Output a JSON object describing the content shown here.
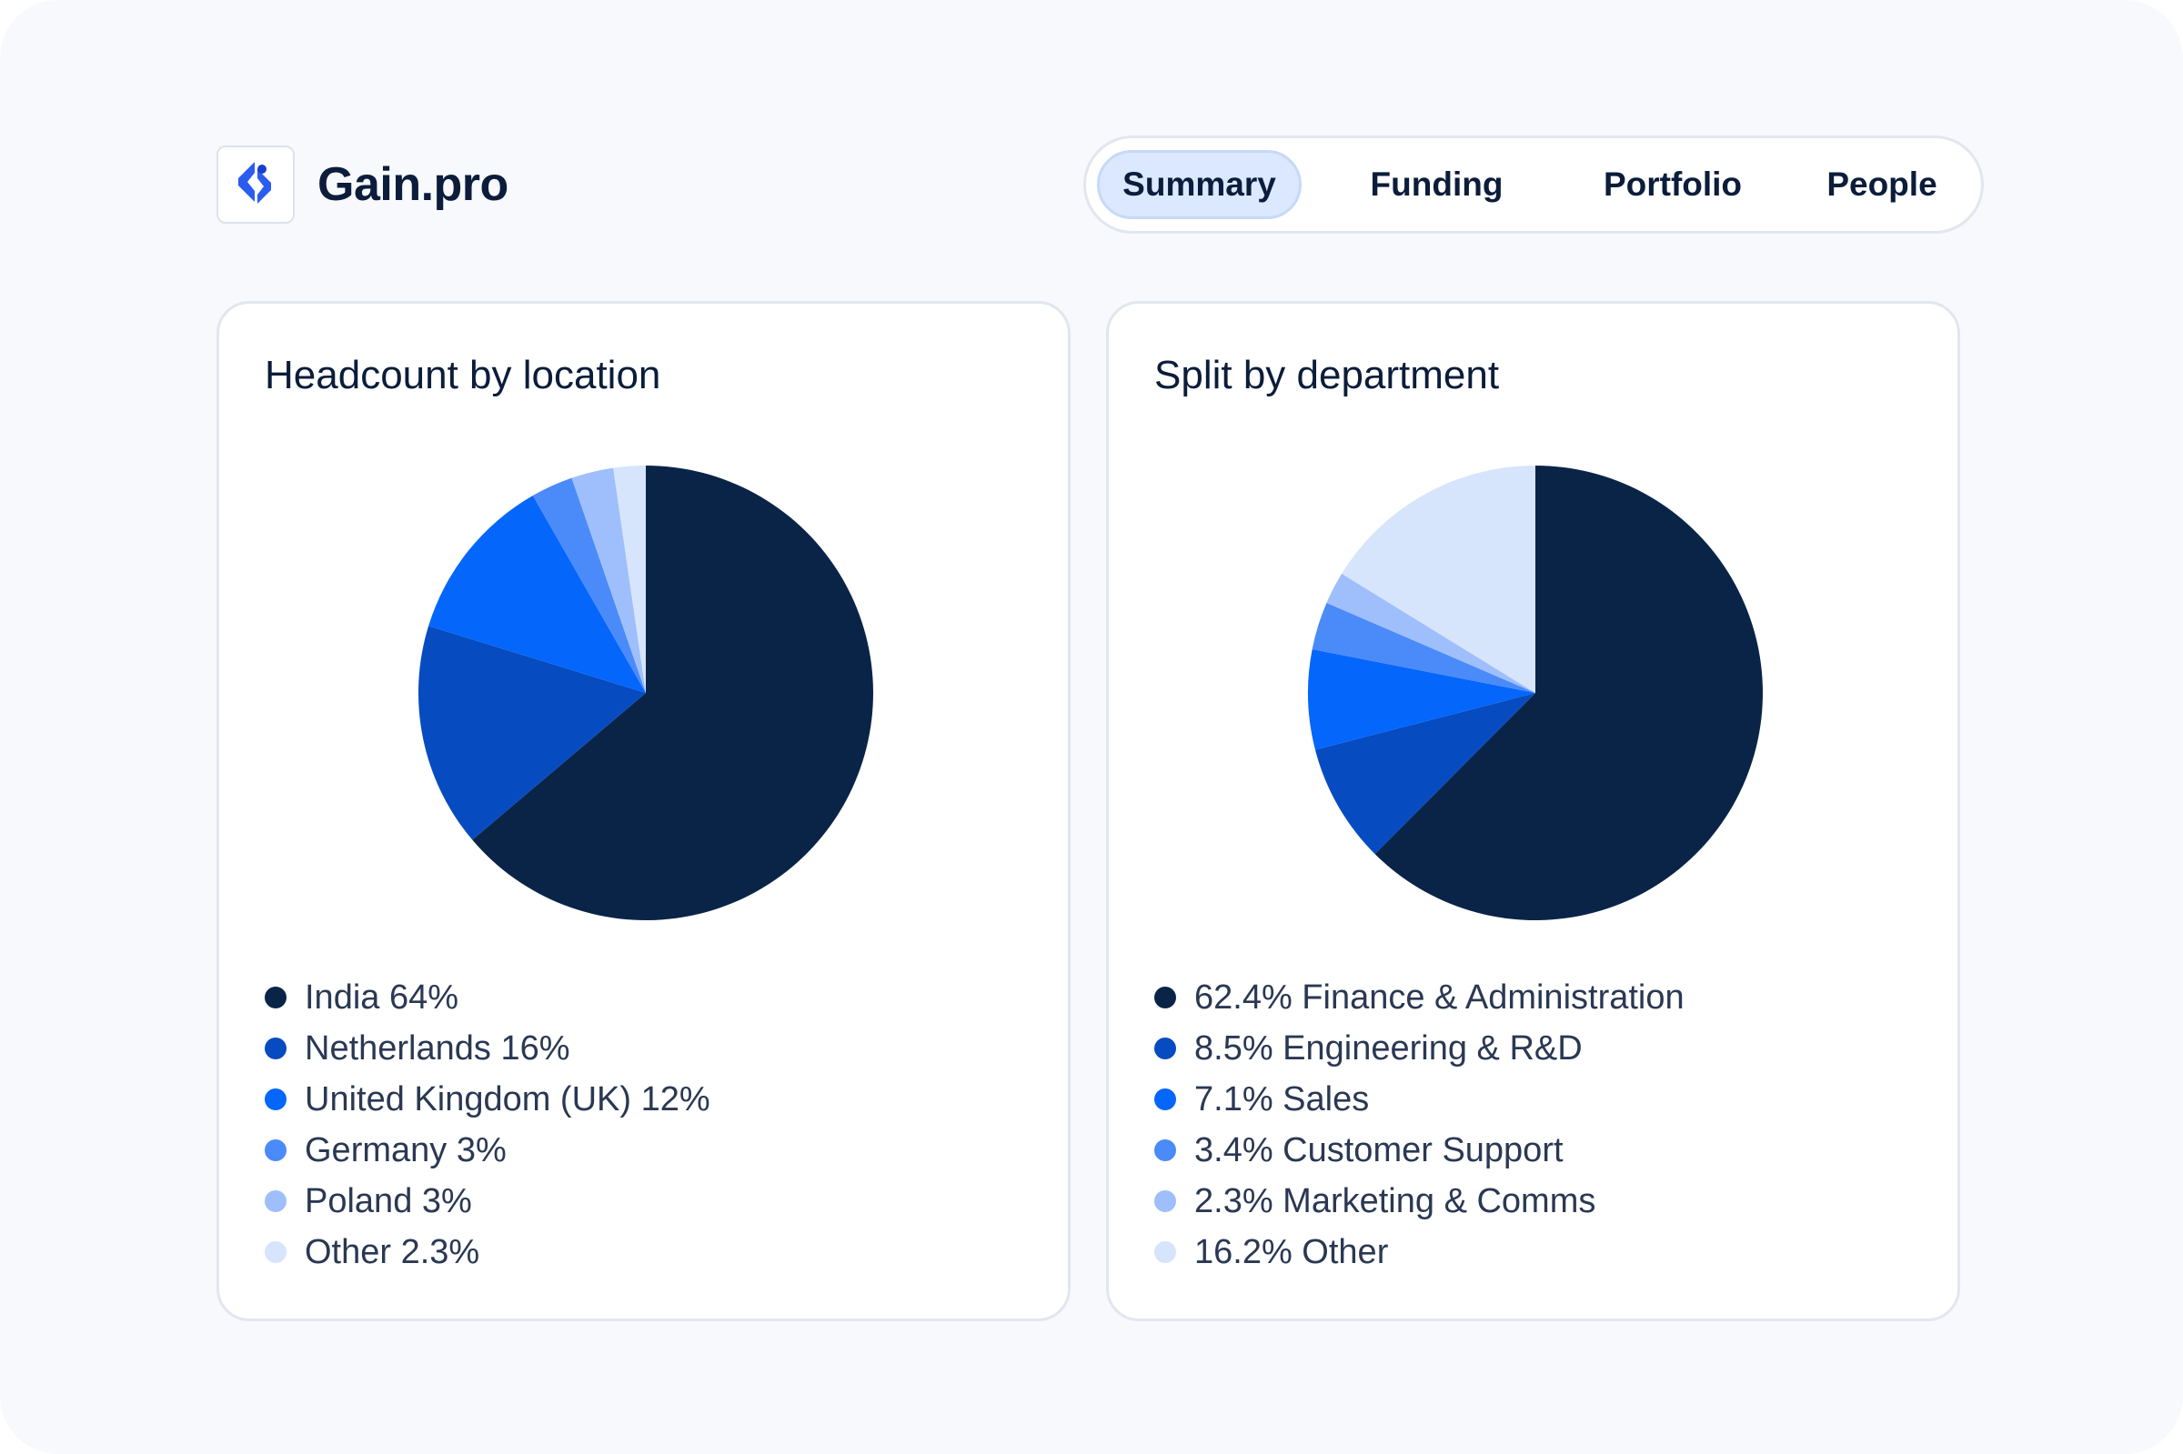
{
  "brand": {
    "name": "Gain.pro",
    "logo_icon": "gain-logo-icon",
    "logo_color": "#2a5cf0"
  },
  "tabs": [
    {
      "label": "Summary",
      "active": true
    },
    {
      "label": "Funding",
      "active": false
    },
    {
      "label": "Portfolio",
      "active": false
    },
    {
      "label": "People",
      "active": false
    }
  ],
  "palette": [
    "#0a2448",
    "#074bc0",
    "#0466fb",
    "#4b8af9",
    "#9ebffb",
    "#d6e5fc"
  ],
  "cards": {
    "location": {
      "title": "Headcount by location",
      "legend": [
        "India 64%",
        "Netherlands 16%",
        "United Kingdom (UK) 12%",
        "Germany 3%",
        "Poland 3%",
        "Other 2.3%"
      ]
    },
    "department": {
      "title": "Split by department",
      "legend": [
        "62.4% Finance & Administration",
        "8.5% Engineering & R&D",
        "7.1% Sales",
        "3.4% Customer Support",
        "2.3% Marketing & Comms",
        "16.2% Other"
      ]
    }
  },
  "chart_data": [
    {
      "type": "pie",
      "title": "Headcount by location",
      "categories": [
        "India",
        "Netherlands",
        "United Kingdom (UK)",
        "Germany",
        "Poland",
        "Other"
      ],
      "values": [
        64,
        16,
        12,
        3,
        3,
        2.3
      ],
      "legend_position": "bottom"
    },
    {
      "type": "pie",
      "title": "Split by department",
      "categories": [
        "Finance & Administration",
        "Engineering & R&D",
        "Sales",
        "Customer Support",
        "Marketing & Comms",
        "Other"
      ],
      "values": [
        62.4,
        8.5,
        7.1,
        3.4,
        2.3,
        16.2
      ],
      "legend_position": "bottom"
    }
  ]
}
